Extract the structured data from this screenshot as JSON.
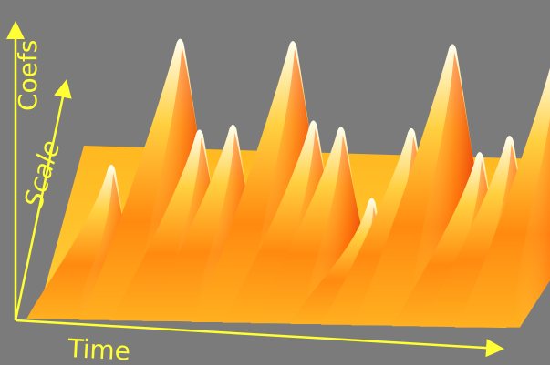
{
  "chart_data": {
    "type": "area",
    "xlabel": "Time",
    "ylabel": "Scale",
    "zlabel": "Coefs",
    "grid": false,
    "colors": {
      "background": "#7b7b7b",
      "axis": "#ffff33",
      "low": "#ffd24a",
      "mid": "#ff9a1a",
      "deep": "#e01800",
      "peak": "#ffffee"
    },
    "ridges": [
      {
        "t": 0.04,
        "height": 0.55
      },
      {
        "t": 0.16,
        "height": 1.0
      },
      {
        "t": 0.22,
        "height": 0.68
      },
      {
        "t": 0.29,
        "height": 0.7
      },
      {
        "t": 0.4,
        "height": 1.0
      },
      {
        "t": 0.46,
        "height": 0.72
      },
      {
        "t": 0.52,
        "height": 0.7
      },
      {
        "t": 0.6,
        "height": 0.45
      },
      {
        "t": 0.67,
        "height": 0.7
      },
      {
        "t": 0.74,
        "height": 1.0
      },
      {
        "t": 0.82,
        "height": 0.62
      },
      {
        "t": 0.88,
        "height": 0.68
      },
      {
        "t": 0.96,
        "height": 0.95
      }
    ]
  }
}
